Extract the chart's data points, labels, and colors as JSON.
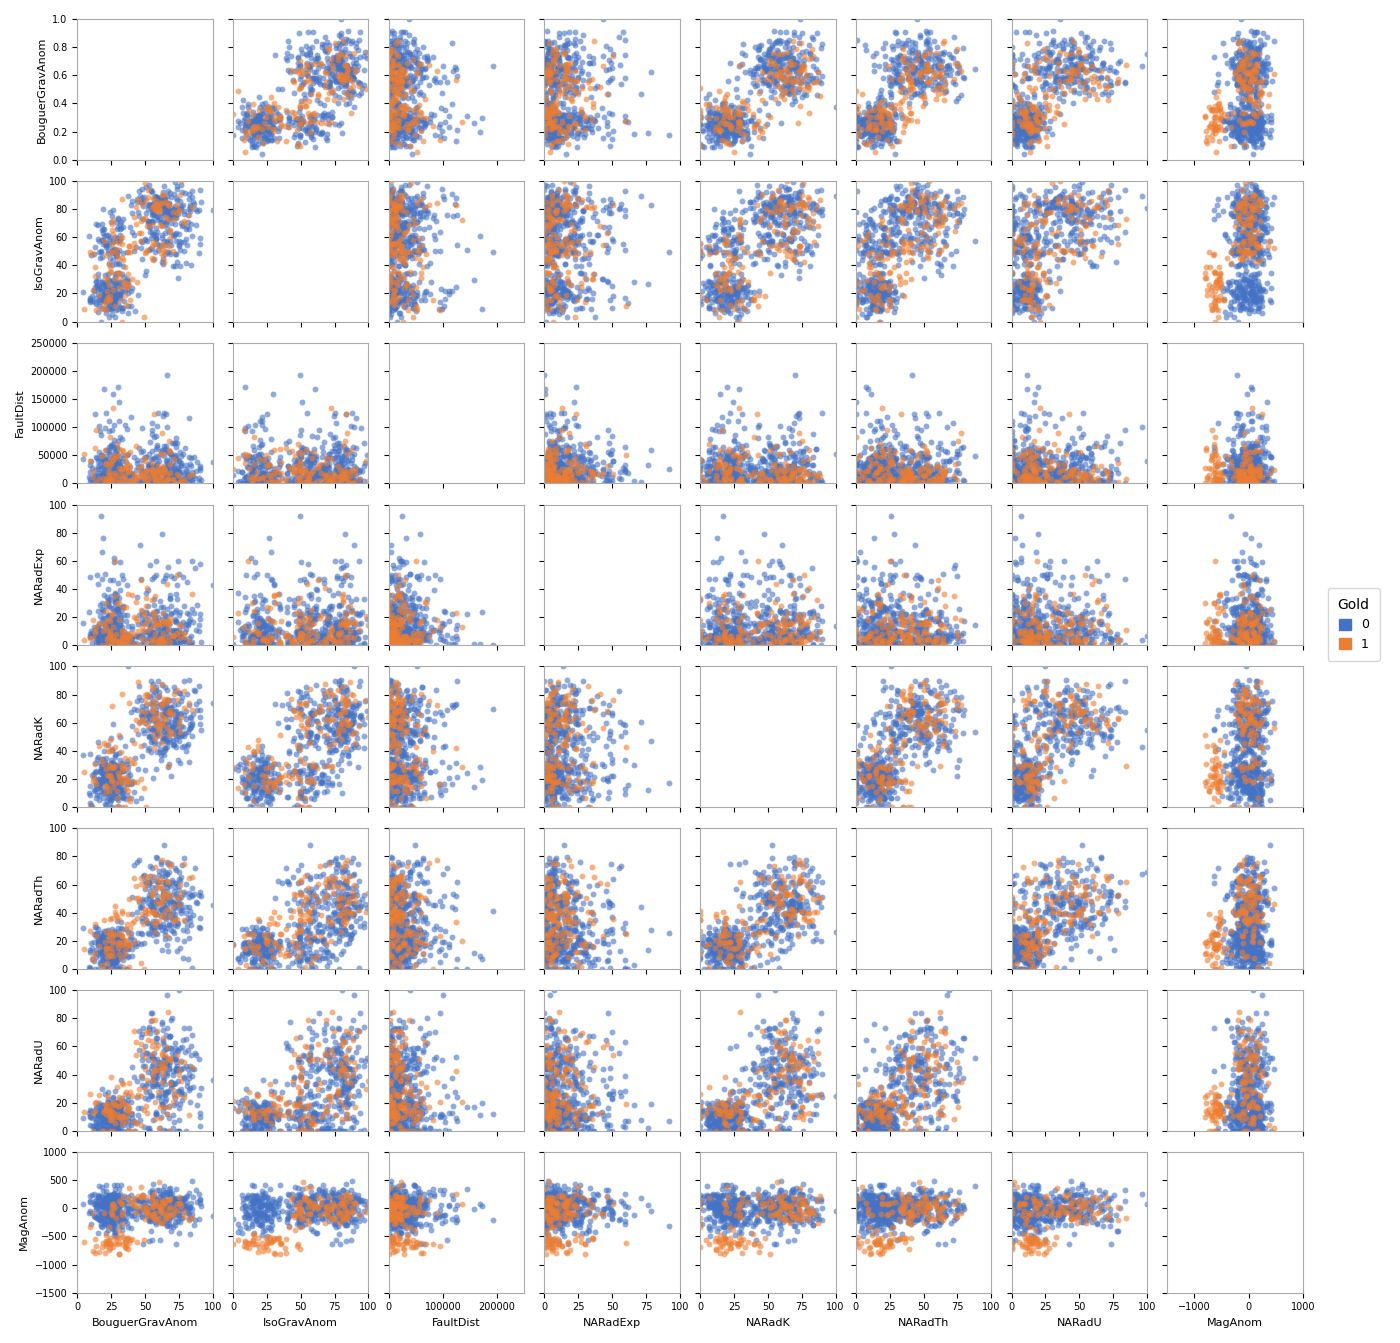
{
  "features": [
    "BouguerGravAnom",
    "IsoGravAnom",
    "FaultDist",
    "NARadExp",
    "NARadK",
    "NARadTh",
    "NARadU",
    "MagAnom"
  ],
  "n_samples_class0": 500,
  "n_samples_class1": 150,
  "color_class0": "#4472C4",
  "color_class1": "#ED7D31",
  "alpha_scatter": 0.6,
  "alpha_kde": 0.4,
  "point_size": 18,
  "legend_title": "Gold",
  "legend_labels": [
    "0",
    "1"
  ],
  "background_color": "#ffffff",
  "figsize": [
    14.0,
    13.43
  ],
  "dpi": 100
}
